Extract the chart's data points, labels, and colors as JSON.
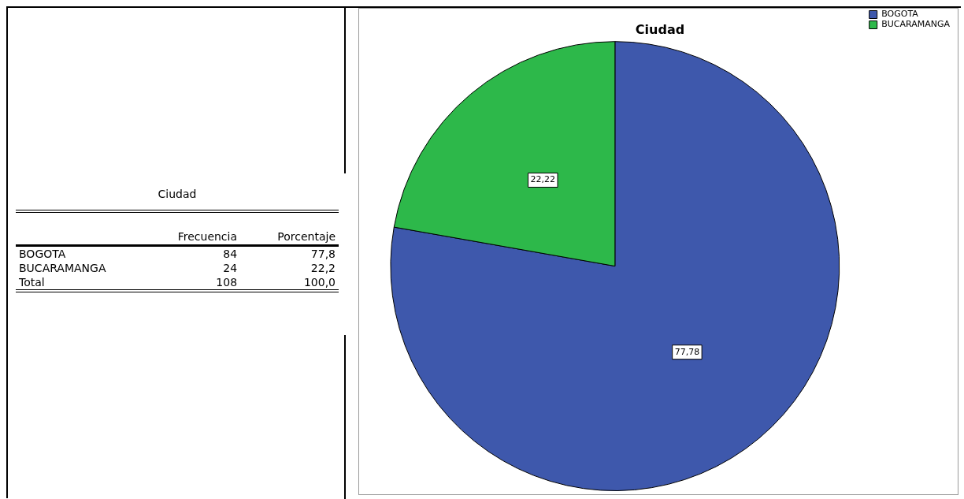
{
  "chart_data": [
    {
      "type": "other",
      "title": "Ciudad",
      "categories": [
        "BOGOTA",
        "BUCARAMANGA",
        "Total"
      ],
      "series": [
        {
          "name": "Frecuencia",
          "values": [
            84,
            24,
            108
          ],
          "value_labels": [
            "84",
            "24",
            "108"
          ]
        },
        {
          "name": "Porcentaje",
          "values": [
            77.8,
            22.2,
            100.0
          ],
          "value_labels": [
            "77,8",
            "22,2",
            "100,0"
          ]
        }
      ]
    },
    {
      "type": "pie",
      "title": "Ciudad",
      "categories": [
        "BOGOTA",
        "BUCARAMANGA"
      ],
      "values": [
        77.78,
        22.22
      ],
      "value_labels": [
        "77,78",
        "22,22"
      ],
      "colors": [
        "#3e58ac",
        "#2db84a"
      ],
      "legend": "top right"
    }
  ]
}
